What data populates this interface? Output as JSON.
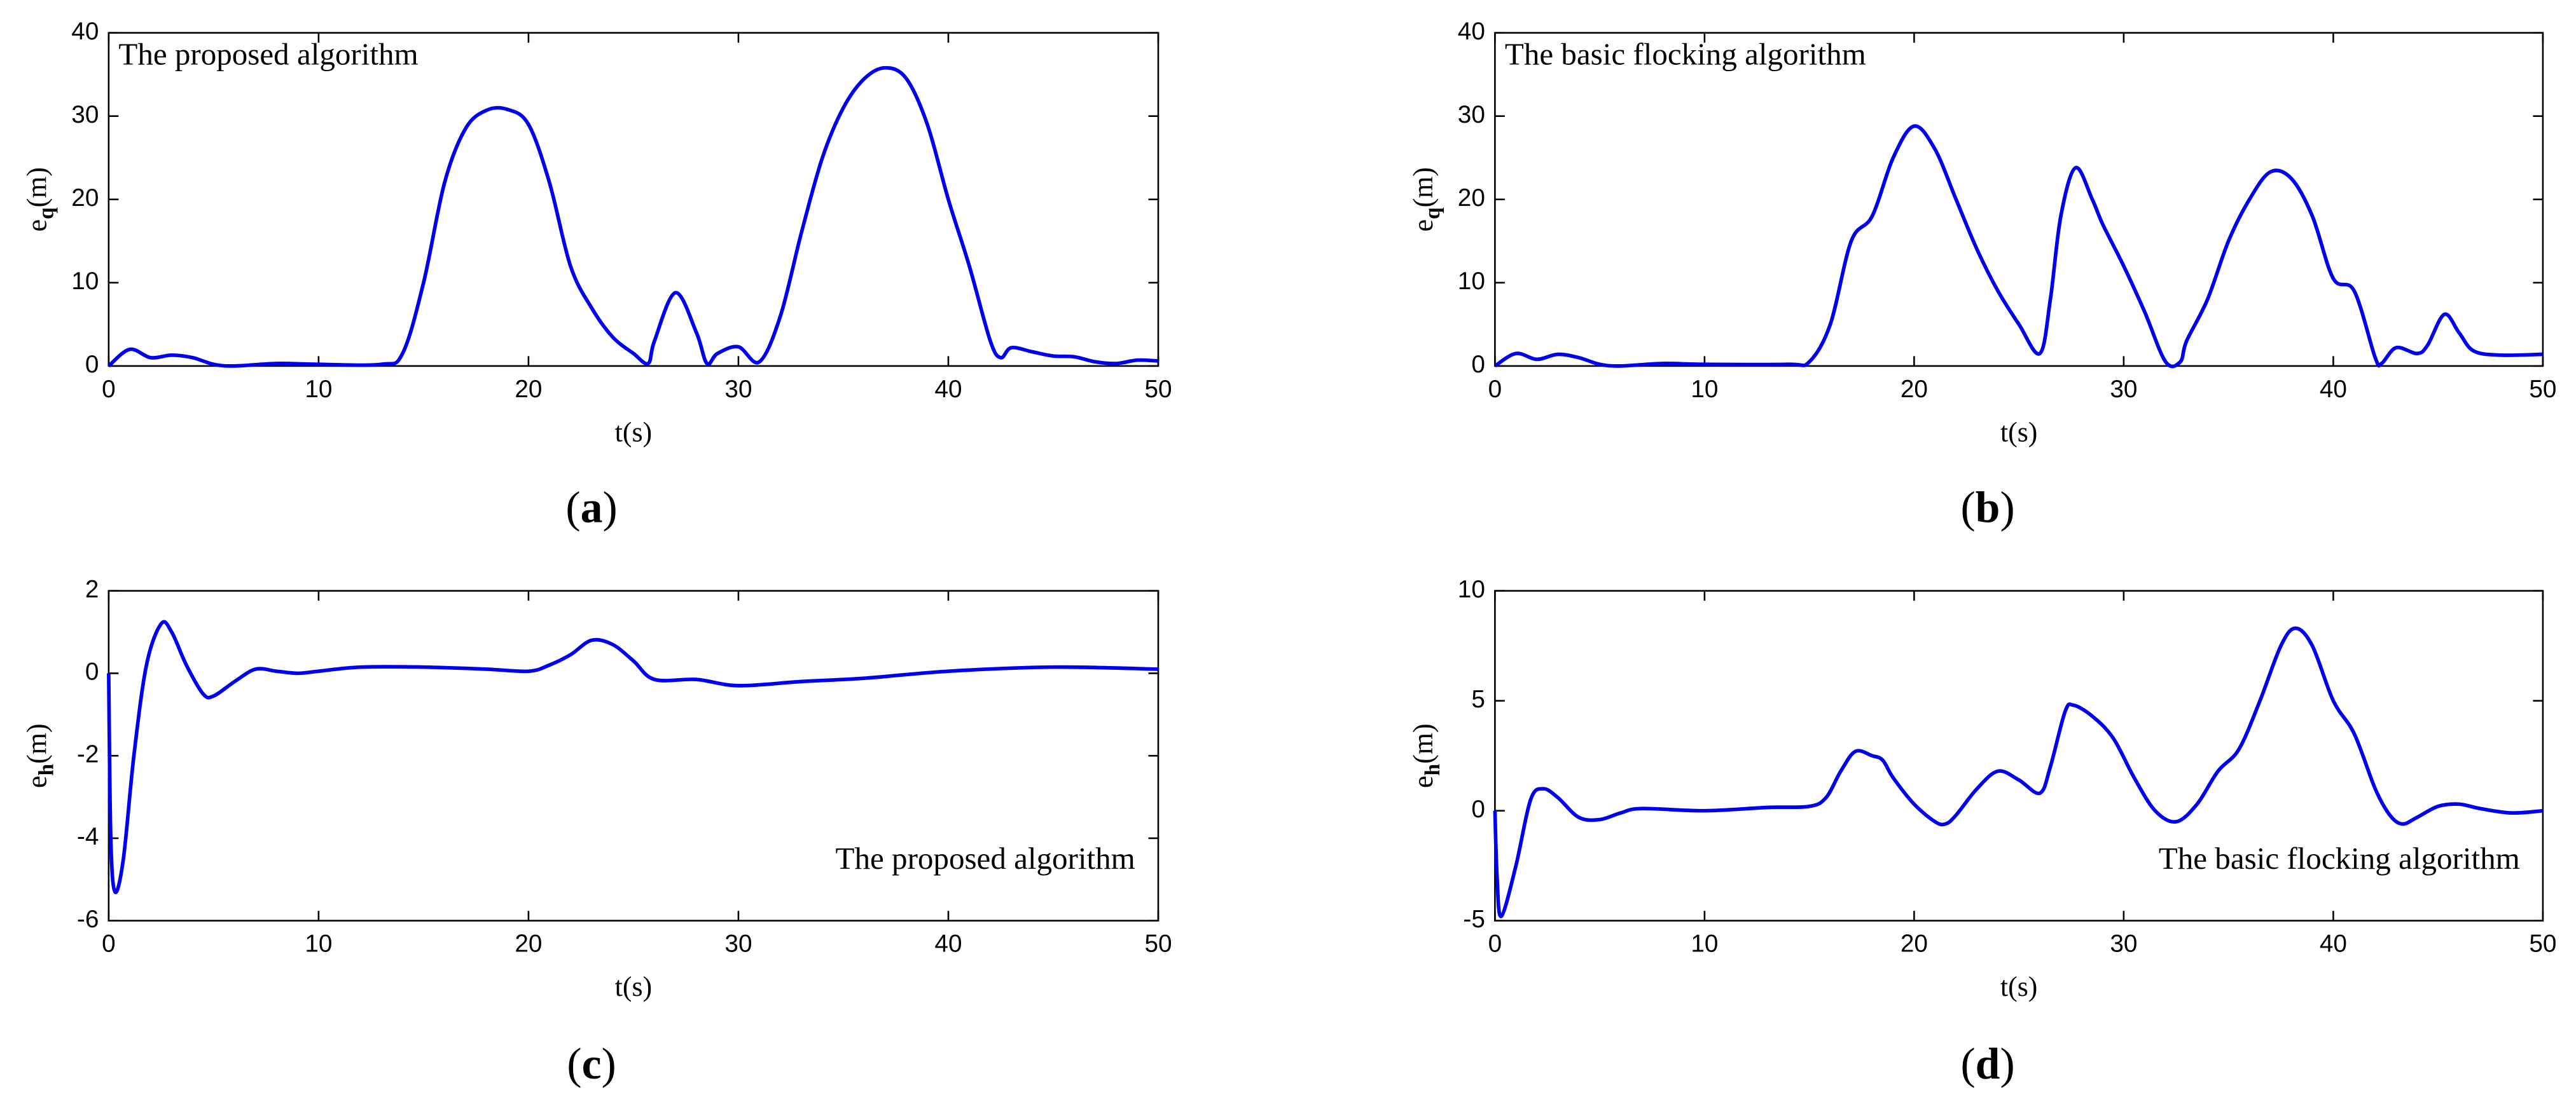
{
  "chart_data": [
    {
      "type": "line",
      "annotation": "The proposed algorithm",
      "annotation_corner": "upper left",
      "xlabel": "t(s)",
      "ylabel": [
        "e",
        "q",
        "(m)"
      ],
      "panel_label": [
        "(",
        "a",
        ")"
      ],
      "xlim": [
        0,
        50
      ],
      "xticks": [
        0,
        10,
        20,
        30,
        40,
        50
      ],
      "ylim": [
        0,
        40
      ],
      "yticks": [
        0,
        10,
        20,
        30,
        40
      ],
      "x": [
        0,
        1,
        2,
        3,
        4,
        5,
        6,
        8,
        10,
        13,
        14,
        15,
        16,
        17,
        18,
        19,
        20,
        21,
        22,
        23,
        24,
        25,
        25.7,
        26,
        27,
        28,
        28.5,
        29,
        30,
        31,
        32,
        33,
        34,
        35,
        36,
        37,
        38,
        39,
        40,
        41,
        42,
        42.5,
        43,
        44,
        45,
        46,
        47,
        48,
        49,
        50
      ],
      "series": [
        {
          "color": "#0000ee",
          "values": [
            0,
            2,
            1,
            1.3,
            1,
            0.2,
            0,
            0.3,
            0.2,
            0.2,
            1.5,
            10,
            22,
            28.5,
            30.7,
            30.8,
            29,
            22,
            12,
            7,
            3.5,
            1.5,
            0.3,
            3,
            8.8,
            4,
            0.3,
            1.5,
            2.3,
            0.5,
            6,
            16,
            25,
            31,
            34.5,
            35.8,
            34.5,
            29,
            20,
            12,
            3,
            1,
            2.2,
            1.7,
            1.2,
            1.1,
            0.5,
            0.3,
            0.7,
            0.6
          ]
        }
      ]
    },
    {
      "type": "line",
      "annotation": "The basic flocking algorithm",
      "annotation_corner": "upper left",
      "xlabel": "t(s)",
      "ylabel": [
        "e",
        "q",
        "(m)"
      ],
      "panel_label": [
        "(",
        "b",
        ")"
      ],
      "xlim": [
        0,
        50
      ],
      "xticks": [
        0,
        10,
        20,
        30,
        40,
        50
      ],
      "ylim": [
        0,
        40
      ],
      "yticks": [
        0,
        10,
        20,
        30,
        40
      ],
      "x": [
        0,
        1,
        2,
        3,
        4,
        5,
        6,
        8,
        10,
        14,
        15,
        16,
        17,
        18,
        19,
        20,
        21,
        22,
        23,
        24,
        25,
        26,
        26.5,
        27,
        27.7,
        28.5,
        29,
        30,
        31,
        32,
        32.7,
        33,
        34,
        35,
        36,
        37,
        38,
        39,
        40,
        41,
        42,
        42.3,
        43,
        44,
        44.5,
        45.3,
        46,
        46.7,
        48,
        50
      ],
      "series": [
        {
          "color": "#0000ee",
          "values": [
            0,
            1.5,
            0.8,
            1.4,
            1,
            0.2,
            0,
            0.3,
            0.2,
            0.2,
            0.5,
            5,
            15,
            18,
            25,
            28.8,
            26,
            20,
            14,
            9,
            5,
            1.5,
            8,
            18,
            23.8,
            20,
            17,
            12,
            6.5,
            0.5,
            0.5,
            3,
            8,
            15,
            20,
            23.3,
            22.5,
            18,
            10.5,
            9,
            1,
            0.3,
            2.2,
            1.5,
            2.5,
            6.2,
            4,
            1.8,
            1.3,
            1.4
          ]
        }
      ]
    },
    {
      "type": "line",
      "annotation": "The proposed algorithm",
      "annotation_corner": "lower right",
      "xlabel": "t(s)",
      "ylabel": [
        "e",
        "h",
        "(m)"
      ],
      "panel_label": [
        "(",
        "c",
        ")"
      ],
      "xlim": [
        0,
        50
      ],
      "xticks": [
        0,
        10,
        20,
        30,
        40,
        50
      ],
      "ylim": [
        -6,
        2
      ],
      "yticks": [
        -6,
        -4,
        -2,
        0,
        2
      ],
      "x": [
        0,
        0.1,
        0.3,
        0.7,
        1.2,
        1.8,
        2.5,
        3,
        3.7,
        4.5,
        5,
        6,
        7,
        8,
        9,
        10,
        12,
        15,
        18,
        20,
        21,
        22,
        23,
        24,
        25,
        26,
        28,
        30,
        33,
        36,
        40,
        45,
        50
      ],
      "series": [
        {
          "color": "#0000ee",
          "values": [
            0,
            -4,
            -5.3,
            -4.5,
            -2,
            0.2,
            1.2,
            1,
            0.2,
            -0.5,
            -0.55,
            -0.2,
            0.1,
            0.05,
            0,
            0.05,
            0.15,
            0.15,
            0.1,
            0.05,
            0.2,
            0.45,
            0.8,
            0.7,
            0.3,
            -0.15,
            -0.15,
            -0.3,
            -0.2,
            -0.12,
            0.05,
            0.15,
            0.1
          ]
        }
      ]
    },
    {
      "type": "line",
      "annotation": "The basic flocking algorithm",
      "annotation_corner": "lower right",
      "xlabel": "t(s)",
      "ylabel": [
        "e",
        "h",
        "(m)"
      ],
      "panel_label": [
        "(",
        "d",
        ")"
      ],
      "xlim": [
        0,
        50
      ],
      "xticks": [
        0,
        10,
        20,
        30,
        40,
        50
      ],
      "ylim": [
        -5,
        10
      ],
      "yticks": [
        -5,
        0,
        5,
        10
      ],
      "x": [
        0,
        0.1,
        0.3,
        1,
        1.7,
        2.3,
        3,
        4,
        5,
        6,
        7,
        10,
        13,
        15,
        15.8,
        16.5,
        17.2,
        18,
        18.5,
        19,
        20,
        21,
        21.5,
        22,
        23,
        24,
        25,
        26,
        26.5,
        27.2,
        27.6,
        28.5,
        29.5,
        30.5,
        31.5,
        32.5,
        33.5,
        34.5,
        35.5,
        36.5,
        37.5,
        38.2,
        39,
        40,
        41,
        42,
        42.7,
        43.3,
        44,
        45,
        46,
        47,
        48.5,
        50
      ],
      "series": [
        {
          "color": "#0000ee",
          "values": [
            0,
            -3,
            -4.8,
            -2.5,
            0.5,
            1,
            0.6,
            -0.3,
            -0.4,
            -0.1,
            0.1,
            0,
            0.15,
            0.2,
            0.6,
            1.8,
            2.7,
            2.5,
            2.3,
            1.5,
            0.3,
            -0.5,
            -0.6,
            -0.2,
            1,
            1.8,
            1.4,
            0.8,
            2,
            4.5,
            4.8,
            4.3,
            3.3,
            1.5,
            0,
            -0.5,
            0.3,
            1.8,
            2.8,
            5,
            7.5,
            8.3,
            7.5,
            5,
            3.5,
            1,
            -0.2,
            -0.6,
            -0.3,
            0.2,
            0.3,
            0.1,
            -0.1,
            0
          ]
        }
      ]
    }
  ]
}
